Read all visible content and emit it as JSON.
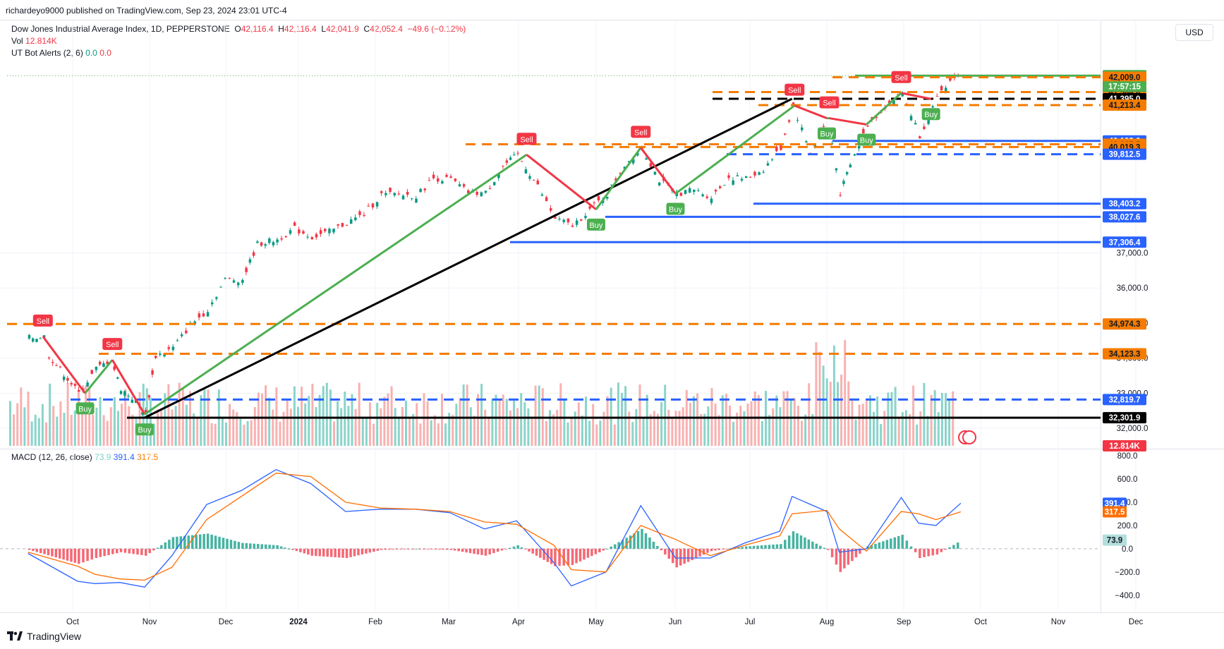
{
  "header": {
    "publisher": "richardeyo9000 published on TradingView.com, Sep 23, 2024 23:01 UTC-4",
    "currency": "USD"
  },
  "legend": {
    "symbol": "Dow Jones Industrial Average Index, 1D, PEPPERSTONE",
    "open_label": "O",
    "open": "42,116.4",
    "high_label": "H",
    "high": "42,116.4",
    "low_label": "L",
    "low": "42,041.9",
    "close_label": "C",
    "close": "42,052.4",
    "change": "−49.6 (−0.12%)",
    "vol_label": "Vol",
    "vol": "12.814K",
    "indicator": "UT Bot Alerts (2, 6)",
    "ind_a": "0.0",
    "ind_b": "0.0",
    "macd_label": "MACD (12, 26, close)",
    "macd_hist": "73.9",
    "macd_line": "391.4",
    "macd_signal": "317.5"
  },
  "footer": {
    "brand": "TradingView"
  },
  "colors": {
    "up": "#089981",
    "down": "#f23645",
    "vol_up": "#7dcfc4",
    "vol_down": "#f7a9a7",
    "green_line": "#4caf50",
    "black_line": "#000000",
    "orange": "#f57c00",
    "blue": "#2962ff",
    "macd_line": "#2962ff",
    "signal_line": "#ff6d00",
    "grid": "#f0f3fa"
  },
  "chart_data": {
    "type": "candlestick",
    "symbol": "Dow Jones Industrial Average Index",
    "timeframe": "1D",
    "x_labels": [
      "Oct",
      "Nov",
      "Dec",
      "2024",
      "Feb",
      "Mar",
      "Apr",
      "May",
      "Jun",
      "Jul",
      "Aug",
      "Sep",
      "Oct",
      "Nov",
      "Dec"
    ],
    "y_ticks": [
      32000,
      33000,
      34000,
      35000,
      36000,
      37000
    ],
    "ylim": [
      31500,
      42400
    ],
    "macd_ticks": [
      "800.0",
      "600.0",
      "400.0",
      "200.0",
      "0.0",
      "−200.0",
      "−400.0"
    ],
    "macd_ylim": [
      -480,
      830
    ],
    "price_series": [
      {
        "date": "2023-09-13",
        "close": 34570
      },
      {
        "date": "2023-09-19",
        "close": 34620
      },
      {
        "date": "2023-09-21",
        "close": 34070
      },
      {
        "date": "2023-09-27",
        "close": 33550
      },
      {
        "date": "2023-10-03",
        "close": 33000
      },
      {
        "date": "2023-10-10",
        "close": 33700
      },
      {
        "date": "2023-10-16",
        "close": 33950
      },
      {
        "date": "2023-10-20",
        "close": 33130
      },
      {
        "date": "2023-10-26",
        "close": 32780
      },
      {
        "date": "2023-10-30",
        "close": 32400
      },
      {
        "date": "2023-11-03",
        "close": 34060
      },
      {
        "date": "2023-11-10",
        "close": 34290
      },
      {
        "date": "2023-11-17",
        "close": 34950
      },
      {
        "date": "2023-11-24",
        "close": 35380
      },
      {
        "date": "2023-12-01",
        "close": 36240
      },
      {
        "date": "2023-12-08",
        "close": 36240
      },
      {
        "date": "2023-12-14",
        "close": 37250
      },
      {
        "date": "2023-12-22",
        "close": 37380
      },
      {
        "date": "2023-12-29",
        "close": 37690
      },
      {
        "date": "2024-01-05",
        "close": 37450
      },
      {
        "date": "2024-01-12",
        "close": 37600
      },
      {
        "date": "2024-01-19",
        "close": 37860
      },
      {
        "date": "2024-01-26",
        "close": 38100
      },
      {
        "date": "2024-02-02",
        "close": 38660
      },
      {
        "date": "2024-02-09",
        "close": 38670
      },
      {
        "date": "2024-02-16",
        "close": 38620
      },
      {
        "date": "2024-02-23",
        "close": 39130
      },
      {
        "date": "2024-03-01",
        "close": 39090
      },
      {
        "date": "2024-03-08",
        "close": 38720
      },
      {
        "date": "2024-03-15",
        "close": 38710
      },
      {
        "date": "2024-03-22",
        "close": 39470
      },
      {
        "date": "2024-03-28",
        "close": 39800
      },
      {
        "date": "2024-04-05",
        "close": 38900
      },
      {
        "date": "2024-04-12",
        "close": 37980
      },
      {
        "date": "2024-04-19",
        "close": 37770
      },
      {
        "date": "2024-04-26",
        "close": 38240
      },
      {
        "date": "2024-05-03",
        "close": 38670
      },
      {
        "date": "2024-05-10",
        "close": 39510
      },
      {
        "date": "2024-05-17",
        "close": 40000
      },
      {
        "date": "2024-05-24",
        "close": 39070
      },
      {
        "date": "2024-05-31",
        "close": 38690
      },
      {
        "date": "2024-06-07",
        "close": 38800
      },
      {
        "date": "2024-06-14",
        "close": 38590
      },
      {
        "date": "2024-06-21",
        "close": 39150
      },
      {
        "date": "2024-06-28",
        "close": 39120
      },
      {
        "date": "2024-07-05",
        "close": 39380
      },
      {
        "date": "2024-07-12",
        "close": 40000
      },
      {
        "date": "2024-07-17",
        "close": 41200
      },
      {
        "date": "2024-07-24",
        "close": 39850
      },
      {
        "date": "2024-07-31",
        "close": 40840
      },
      {
        "date": "2024-08-05",
        "close": 38700
      },
      {
        "date": "2024-08-09",
        "close": 39500
      },
      {
        "date": "2024-08-16",
        "close": 40660
      },
      {
        "date": "2024-08-23",
        "close": 41170
      },
      {
        "date": "2024-08-30",
        "close": 41560
      },
      {
        "date": "2024-09-06",
        "close": 40350
      },
      {
        "date": "2024-09-13",
        "close": 41390
      },
      {
        "date": "2024-09-20",
        "close": 42060
      },
      {
        "date": "2024-09-23",
        "close": 42052.4
      }
    ],
    "price_levels": [
      {
        "value": "42,052.4",
        "style": "solid",
        "color": "#4caf50",
        "tag": "last"
      },
      {
        "value": "42,009.0",
        "style": "dashed",
        "color": "#f57c00"
      },
      {
        "value": "41,584.8",
        "style": "dashed",
        "color": "#f57c00"
      },
      {
        "value": "41,395.0",
        "style": "dashed",
        "color": "#000000"
      },
      {
        "value": "41,213.4",
        "style": "dashed",
        "color": "#f57c00"
      },
      {
        "value": "40,193.6",
        "style": "solid",
        "color": "#2962ff"
      },
      {
        "value": "40,097.7",
        "style": "dashed",
        "color": "#f57c00"
      },
      {
        "value": "40,019.3",
        "style": "dashed",
        "color": "#f57c00"
      },
      {
        "value": "39,812.5",
        "style": "dashed",
        "color": "#2962ff"
      },
      {
        "value": "38,403.2",
        "style": "solid",
        "color": "#2962ff"
      },
      {
        "value": "38,027.6",
        "style": "solid",
        "color": "#2962ff"
      },
      {
        "value": "37,306.4",
        "style": "solid",
        "color": "#2962ff"
      },
      {
        "value": "34,974.3",
        "style": "dashed",
        "color": "#f57c00"
      },
      {
        "value": "34,123.3",
        "style": "dashed",
        "color": "#f57c00"
      },
      {
        "value": "32,819.7",
        "style": "dashed",
        "color": "#2962ff"
      },
      {
        "value": "32,301.9",
        "style": "solid",
        "color": "#000000"
      }
    ],
    "countdown": "17:57:15",
    "volume_last": "12.814K",
    "signals": [
      {
        "type": "Sell",
        "date": "2023-09-19"
      },
      {
        "type": "Buy",
        "date": "2023-10-06"
      },
      {
        "type": "Sell",
        "date": "2023-10-17"
      },
      {
        "type": "Buy",
        "date": "2023-10-30"
      },
      {
        "type": "Sell",
        "date": "2024-04-01"
      },
      {
        "type": "Buy",
        "date": "2024-04-29"
      },
      {
        "type": "Sell",
        "date": "2024-05-17"
      },
      {
        "type": "Buy",
        "date": "2024-05-31"
      },
      {
        "type": "Sell",
        "date": "2024-07-18"
      },
      {
        "type": "Buy",
        "date": "2024-07-31"
      },
      {
        "type": "Sell",
        "date": "2024-08-01"
      },
      {
        "type": "Buy",
        "date": "2024-08-16"
      },
      {
        "type": "Sell",
        "date": "2024-08-30"
      },
      {
        "type": "Buy",
        "date": "2024-09-11"
      }
    ],
    "macd_series": [
      {
        "date": "2023-09-13",
        "macd": -40,
        "signal": -30
      },
      {
        "date": "2023-10-03",
        "macd": -280,
        "signal": -150
      },
      {
        "date": "2023-10-10",
        "macd": -300,
        "signal": -220
      },
      {
        "date": "2023-10-20",
        "macd": -290,
        "signal": -260
      },
      {
        "date": "2023-10-30",
        "macd": -330,
        "signal": -270
      },
      {
        "date": "2023-11-10",
        "macd": -60,
        "signal": -160
      },
      {
        "date": "2023-11-24",
        "macd": 380,
        "signal": 250
      },
      {
        "date": "2023-12-08",
        "macd": 500,
        "signal": 450
      },
      {
        "date": "2023-12-22",
        "macd": 680,
        "signal": 650
      },
      {
        "date": "2024-01-05",
        "macd": 560,
        "signal": 620
      },
      {
        "date": "2024-01-19",
        "macd": 320,
        "signal": 400
      },
      {
        "date": "2024-02-02",
        "macd": 340,
        "signal": 350
      },
      {
        "date": "2024-02-16",
        "macd": 340,
        "signal": 340
      },
      {
        "date": "2024-03-01",
        "macd": 310,
        "signal": 320
      },
      {
        "date": "2024-03-15",
        "macd": 170,
        "signal": 230
      },
      {
        "date": "2024-03-28",
        "macd": 240,
        "signal": 210
      },
      {
        "date": "2024-04-12",
        "macd": -120,
        "signal": 30
      },
      {
        "date": "2024-04-19",
        "macd": -320,
        "signal": -180
      },
      {
        "date": "2024-05-03",
        "macd": -200,
        "signal": -200
      },
      {
        "date": "2024-05-17",
        "macd": 370,
        "signal": 200
      },
      {
        "date": "2024-05-31",
        "macd": -80,
        "signal": 80
      },
      {
        "date": "2024-06-14",
        "macd": -80,
        "signal": -60
      },
      {
        "date": "2024-06-28",
        "macd": 50,
        "signal": 30
      },
      {
        "date": "2024-07-12",
        "macd": 150,
        "signal": 110
      },
      {
        "date": "2024-07-17",
        "macd": 450,
        "signal": 300
      },
      {
        "date": "2024-07-31",
        "macd": 320,
        "signal": 330
      },
      {
        "date": "2024-08-05",
        "macd": -30,
        "signal": 170
      },
      {
        "date": "2024-08-16",
        "macd": 0,
        "signal": -20
      },
      {
        "date": "2024-08-30",
        "macd": 440,
        "signal": 320
      },
      {
        "date": "2024-09-06",
        "macd": 220,
        "signal": 300
      },
      {
        "date": "2024-09-13",
        "macd": 200,
        "signal": 250
      },
      {
        "date": "2024-09-23",
        "macd": 391.4,
        "signal": 317.5
      }
    ]
  }
}
